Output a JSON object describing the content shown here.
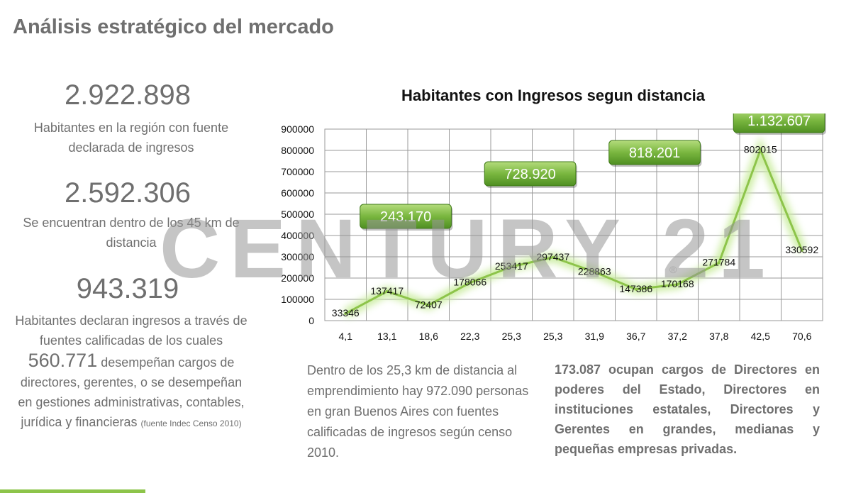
{
  "page": {
    "title": "Análisis estratégico del mercado"
  },
  "stats": [
    {
      "value": "2.922.898",
      "text": "Habitantes en la región con fuente declarada de ingresos"
    },
    {
      "value": "2.592.306",
      "text": "Se encuentran dentro de los 45 km de distancia"
    },
    {
      "value": "943.319",
      "text_before": "Habitantes declaran ingresos a través de fuentes calificadas de los cuales",
      "highlight": "560.771",
      "text_after": "desempeñan cargos de directores, gerentes, o se desempeñan en gestiones administrativas, contables, jurídica y financieras",
      "source": "(fuente Indec Censo 2010)"
    }
  ],
  "chart_data": {
    "type": "line",
    "title": "Habitantes con Ingresos segun distancia",
    "categories": [
      "4,1",
      "13,1",
      "18,6",
      "22,3",
      "25,3",
      "25,3",
      "31,9",
      "36,7",
      "37,2",
      "37,8",
      "42,5",
      "70,6"
    ],
    "values": [
      33346,
      137417,
      72407,
      178066,
      253417,
      297437,
      228863,
      147386,
      170168,
      271784,
      802015,
      330592
    ],
    "ylim": [
      0,
      900000
    ],
    "yticks": [
      0,
      100000,
      200000,
      300000,
      400000,
      500000,
      600000,
      700000,
      800000,
      900000
    ],
    "grid": true,
    "line_color": "#8dc44a",
    "callouts": [
      {
        "label": "243.170",
        "anchor_category": "13,1",
        "span": 2,
        "y": 490000
      },
      {
        "label": "728.920",
        "anchor_category": "25,3",
        "span": 2,
        "y": 690000
      },
      {
        "label": "818.201",
        "anchor_category": "36,7",
        "span": 2,
        "y": 790000
      },
      {
        "label": "1.132.607",
        "anchor_category": "42,5",
        "span": 2,
        "y": 940000
      }
    ]
  },
  "watermark": {
    "text": "CENTURY 21",
    "reg": "®"
  },
  "paragraph_left": "Dentro de los 25,3 km de distancia al emprendimiento hay 972.090 personas en gran Buenos Aires con fuentes calificadas de ingresos según censo 2010.",
  "paragraph_right": "173.087 ocupan cargos de Directores en poderes del Estado, Directores en instituciones estatales, Directores y Gerentes en grandes, medianas y pequeñas empresas privadas.",
  "colors": {
    "accent": "#8dc44a",
    "button": "#6aaa33",
    "text": "#6f6f6f"
  }
}
